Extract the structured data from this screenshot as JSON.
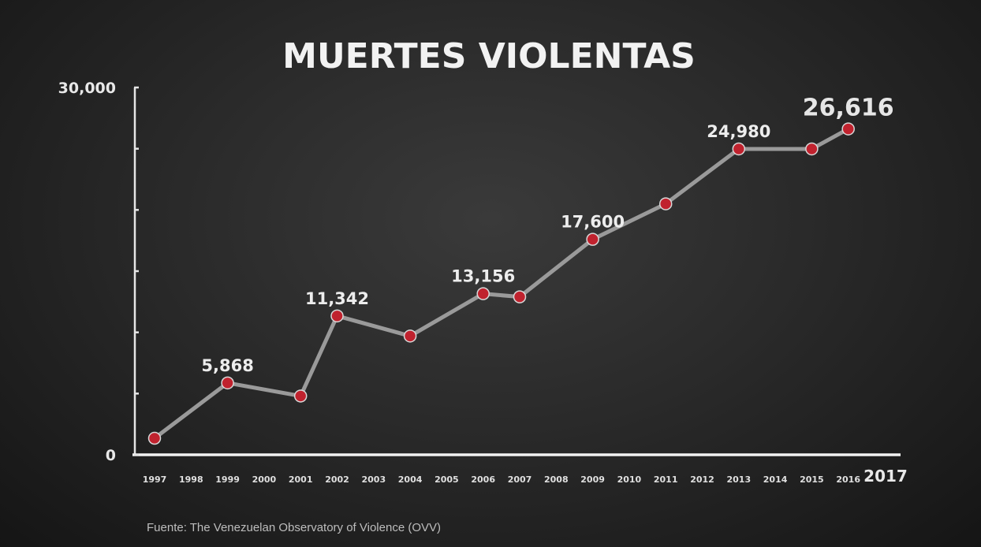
{
  "chart_data": {
    "type": "line",
    "title": "MUERTES VIOLENTAS",
    "source": "Fuente: The Venezuelan Observatory of Violence (OVV)",
    "x_tick_labels": [
      "1997",
      "1998",
      "1999",
      "2000",
      "2001",
      "2002",
      "2003",
      "2004",
      "2005",
      "2006",
      "2007",
      "2008",
      "2009",
      "2010",
      "2011",
      "2012",
      "2013",
      "2014",
      "2015",
      "2016",
      "2017"
    ],
    "y_tick_labels": [
      "0",
      "30,000"
    ],
    "ylim": [
      0,
      30000
    ],
    "y_major_ticks": [
      0,
      5000,
      10000,
      15000,
      20000,
      25000,
      30000
    ],
    "grid": false,
    "line_color": "#9a9a9a",
    "marker_color": "#c0222e",
    "series": [
      {
        "points": [
          {
            "x": "1997",
            "y": 1350
          },
          {
            "x": "1999",
            "y": 5868,
            "label": "5,868"
          },
          {
            "x": "2001",
            "y": 4800
          },
          {
            "x": "2002",
            "y": 11342,
            "label": "11,342"
          },
          {
            "x": "2004",
            "y": 9700
          },
          {
            "x": "2006",
            "y": 13156,
            "label": "13,156"
          },
          {
            "x": "2007",
            "y": 12900
          },
          {
            "x": "2009",
            "y": 17600,
            "label": "17,600"
          },
          {
            "x": "2011",
            "y": 20500
          },
          {
            "x": "2013",
            "y": 24980,
            "label": "24,980"
          },
          {
            "x": "2015",
            "y": 24980
          },
          {
            "x": "2016",
            "y": 26616,
            "label": "26,616",
            "emphasis": true
          }
        ]
      }
    ]
  }
}
